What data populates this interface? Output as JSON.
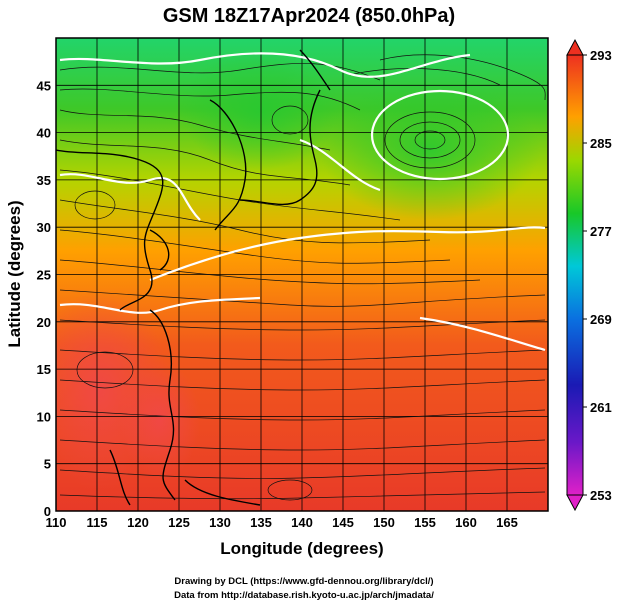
{
  "title": "GSM 18Z17Apr2024 (850.0hPa)",
  "xlabel": "Longitude (degrees)",
  "ylabel": "Latitude  (degrees)",
  "xticks": [
    "110",
    "115",
    "120",
    "125",
    "130",
    "135",
    "140",
    "145",
    "150",
    "155",
    "160",
    "165"
  ],
  "yticks": [
    "0",
    "5",
    "10",
    "15",
    "20",
    "25",
    "30",
    "35",
    "40",
    "45"
  ],
  "colorbar_ticks": [
    "293",
    "285",
    "277",
    "269",
    "261",
    "253"
  ],
  "credit_line1": "Drawing by DCL (https://www.gfd-dennou.org/library/dcl/)",
  "credit_line2": "Data from http://database.rish.kyoto-u.ac.jp/arch/jmadata/",
  "colors": {
    "warm": "#f04030",
    "mid": "#ff9a00",
    "green": "#30c820",
    "cyan": "#00c8c8",
    "blue": "#1818c0",
    "magenta": "#d020c0"
  }
}
